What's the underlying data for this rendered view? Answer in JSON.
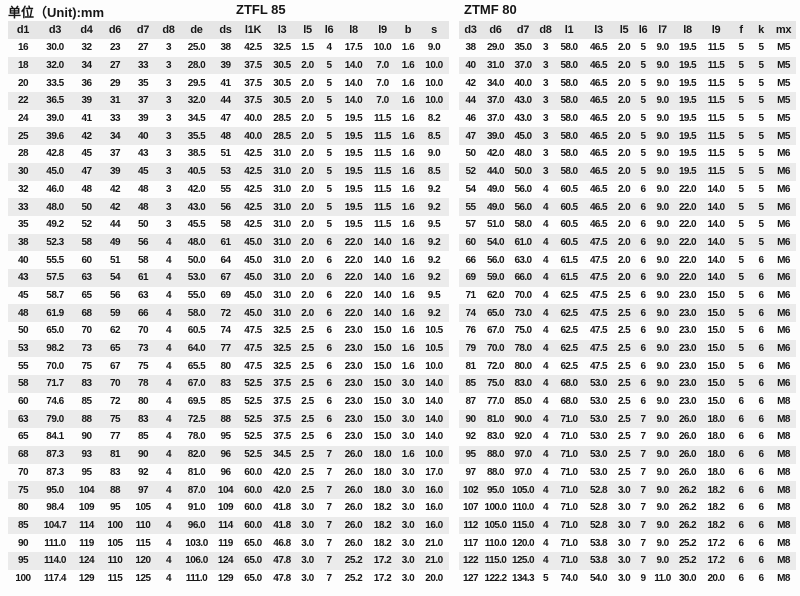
{
  "page": {
    "unit_label": "单位（Unit):mm"
  },
  "left_table": {
    "title": "ZTFL 85",
    "columns": [
      "d1",
      "d3",
      "d4",
      "d6",
      "d7",
      "d8",
      "de",
      "ds",
      "l1K",
      "l3",
      "l5",
      "l6",
      "l8",
      "l9",
      "b",
      "s"
    ],
    "rows": [
      [
        "16",
        "30.0",
        "32",
        "23",
        "27",
        "3",
        "25.0",
        "38",
        "42.5",
        "32.5",
        "1.5",
        "4",
        "17.5",
        "10.0",
        "1.6",
        "9.0"
      ],
      [
        "18",
        "32.0",
        "34",
        "27",
        "33",
        "3",
        "28.0",
        "39",
        "37.5",
        "30.5",
        "2.0",
        "5",
        "14.0",
        "7.0",
        "1.6",
        "10.0"
      ],
      [
        "20",
        "33.5",
        "36",
        "29",
        "35",
        "3",
        "29.5",
        "41",
        "37.5",
        "30.5",
        "2.0",
        "5",
        "14.0",
        "7.0",
        "1.6",
        "10.0"
      ],
      [
        "22",
        "36.5",
        "39",
        "31",
        "37",
        "3",
        "32.0",
        "44",
        "37.5",
        "30.5",
        "2.0",
        "5",
        "14.0",
        "7.0",
        "1.6",
        "10.0"
      ],
      [
        "24",
        "39.0",
        "41",
        "33",
        "39",
        "3",
        "34.5",
        "47",
        "40.0",
        "28.5",
        "2.0",
        "5",
        "19.5",
        "11.5",
        "1.6",
        "8.2"
      ],
      [
        "25",
        "39.6",
        "42",
        "34",
        "40",
        "3",
        "35.5",
        "48",
        "40.0",
        "28.5",
        "2.0",
        "5",
        "19.5",
        "11.5",
        "1.6",
        "8.5"
      ],
      [
        "28",
        "42.8",
        "45",
        "37",
        "43",
        "3",
        "38.5",
        "51",
        "42.5",
        "31.0",
        "2.0",
        "5",
        "19.5",
        "11.5",
        "1.6",
        "9.0"
      ],
      [
        "30",
        "45.0",
        "47",
        "39",
        "45",
        "3",
        "40.5",
        "53",
        "42.5",
        "31.0",
        "2.0",
        "5",
        "19.5",
        "11.5",
        "1.6",
        "8.5"
      ],
      [
        "32",
        "46.0",
        "48",
        "42",
        "48",
        "3",
        "42.0",
        "55",
        "42.5",
        "31.0",
        "2.0",
        "5",
        "19.5",
        "11.5",
        "1.6",
        "9.2"
      ],
      [
        "33",
        "48.0",
        "50",
        "42",
        "48",
        "3",
        "43.0",
        "56",
        "42.5",
        "31.0",
        "2.0",
        "5",
        "19.5",
        "11.5",
        "1.6",
        "9.2"
      ],
      [
        "35",
        "49.2",
        "52",
        "44",
        "50",
        "3",
        "45.5",
        "58",
        "42.5",
        "31.0",
        "2.0",
        "5",
        "19.5",
        "11.5",
        "1.6",
        "9.5"
      ],
      [
        "38",
        "52.3",
        "58",
        "49",
        "56",
        "4",
        "48.0",
        "61",
        "45.0",
        "31.0",
        "2.0",
        "6",
        "22.0",
        "14.0",
        "1.6",
        "9.2"
      ],
      [
        "40",
        "55.5",
        "60",
        "51",
        "58",
        "4",
        "50.0",
        "64",
        "45.0",
        "31.0",
        "2.0",
        "6",
        "22.0",
        "14.0",
        "1.6",
        "9.2"
      ],
      [
        "43",
        "57.5",
        "63",
        "54",
        "61",
        "4",
        "53.0",
        "67",
        "45.0",
        "31.0",
        "2.0",
        "6",
        "22.0",
        "14.0",
        "1.6",
        "9.2"
      ],
      [
        "45",
        "58.7",
        "65",
        "56",
        "63",
        "4",
        "55.0",
        "69",
        "45.0",
        "31.0",
        "2.0",
        "6",
        "22.0",
        "14.0",
        "1.6",
        "9.5"
      ],
      [
        "48",
        "61.9",
        "68",
        "59",
        "66",
        "4",
        "58.0",
        "72",
        "45.0",
        "31.0",
        "2.0",
        "6",
        "22.0",
        "14.0",
        "1.6",
        "9.2"
      ],
      [
        "50",
        "65.0",
        "70",
        "62",
        "70",
        "4",
        "60.5",
        "74",
        "47.5",
        "32.5",
        "2.5",
        "6",
        "23.0",
        "15.0",
        "1.6",
        "10.5"
      ],
      [
        "53",
        "98.2",
        "73",
        "65",
        "73",
        "4",
        "64.0",
        "77",
        "47.5",
        "32.5",
        "2.5",
        "6",
        "23.0",
        "15.0",
        "1.6",
        "10.5"
      ],
      [
        "55",
        "70.0",
        "75",
        "67",
        "75",
        "4",
        "65.5",
        "80",
        "47.5",
        "32.5",
        "2.5",
        "6",
        "23.0",
        "15.0",
        "1.6",
        "10.0"
      ],
      [
        "58",
        "71.7",
        "83",
        "70",
        "78",
        "4",
        "67.0",
        "83",
        "52.5",
        "37.5",
        "2.5",
        "6",
        "23.0",
        "15.0",
        "3.0",
        "14.0"
      ],
      [
        "60",
        "74.6",
        "85",
        "72",
        "80",
        "4",
        "69.5",
        "85",
        "52.5",
        "37.5",
        "2.5",
        "6",
        "23.0",
        "15.0",
        "3.0",
        "14.0"
      ],
      [
        "63",
        "79.0",
        "88",
        "75",
        "83",
        "4",
        "72.5",
        "88",
        "52.5",
        "37.5",
        "2.5",
        "6",
        "23.0",
        "15.0",
        "3.0",
        "14.0"
      ],
      [
        "65",
        "84.1",
        "90",
        "77",
        "85",
        "4",
        "78.0",
        "95",
        "52.5",
        "37.5",
        "2.5",
        "6",
        "23.0",
        "15.0",
        "3.0",
        "14.0"
      ],
      [
        "68",
        "87.3",
        "93",
        "81",
        "90",
        "4",
        "82.0",
        "96",
        "52.5",
        "34.5",
        "2.5",
        "7",
        "26.0",
        "18.0",
        "1.6",
        "10.0"
      ],
      [
        "70",
        "87.3",
        "95",
        "83",
        "92",
        "4",
        "81.0",
        "96",
        "60.0",
        "42.0",
        "2.5",
        "7",
        "26.0",
        "18.0",
        "3.0",
        "17.0"
      ],
      [
        "75",
        "95.0",
        "104",
        "88",
        "97",
        "4",
        "87.0",
        "104",
        "60.0",
        "42.0",
        "2.5",
        "7",
        "26.0",
        "18.0",
        "3.0",
        "16.0"
      ],
      [
        "80",
        "98.4",
        "109",
        "95",
        "105",
        "4",
        "91.0",
        "109",
        "60.0",
        "41.8",
        "3.0",
        "7",
        "26.0",
        "18.2",
        "3.0",
        "16.0"
      ],
      [
        "85",
        "104.7",
        "114",
        "100",
        "110",
        "4",
        "96.0",
        "114",
        "60.0",
        "41.8",
        "3.0",
        "7",
        "26.0",
        "18.2",
        "3.0",
        "16.0"
      ],
      [
        "90",
        "111.0",
        "119",
        "105",
        "115",
        "4",
        "103.0",
        "119",
        "65.0",
        "46.8",
        "3.0",
        "7",
        "26.0",
        "18.2",
        "3.0",
        "21.0"
      ],
      [
        "95",
        "114.0",
        "124",
        "110",
        "120",
        "4",
        "106.0",
        "124",
        "65.0",
        "47.8",
        "3.0",
        "7",
        "25.2",
        "17.2",
        "3.0",
        "21.0"
      ],
      [
        "100",
        "117.4",
        "129",
        "115",
        "125",
        "4",
        "111.0",
        "129",
        "65.0",
        "47.8",
        "3.0",
        "7",
        "25.2",
        "17.2",
        "3.0",
        "20.0"
      ]
    ]
  },
  "right_table": {
    "title": "ZTMF 80",
    "columns": [
      "d3",
      "d6",
      "d7",
      "d8",
      "l1",
      "l3",
      "l5",
      "l6",
      "l7",
      "l8",
      "l9",
      "f",
      "k",
      "mx"
    ],
    "rows": [
      [
        "38",
        "29.0",
        "35.0",
        "3",
        "58.0",
        "46.5",
        "2.0",
        "5",
        "9.0",
        "19.5",
        "11.5",
        "5",
        "5",
        "M5"
      ],
      [
        "40",
        "31.0",
        "37.0",
        "3",
        "58.0",
        "46.5",
        "2.0",
        "5",
        "9.0",
        "19.5",
        "11.5",
        "5",
        "5",
        "M5"
      ],
      [
        "42",
        "34.0",
        "40.0",
        "3",
        "58.0",
        "46.5",
        "2.0",
        "5",
        "9.0",
        "19.5",
        "11.5",
        "5",
        "5",
        "M5"
      ],
      [
        "44",
        "37.0",
        "43.0",
        "3",
        "58.0",
        "46.5",
        "2.0",
        "5",
        "9.0",
        "19.5",
        "11.5",
        "5",
        "5",
        "M5"
      ],
      [
        "46",
        "37.0",
        "43.0",
        "3",
        "58.0",
        "46.5",
        "2.0",
        "5",
        "9.0",
        "19.5",
        "11.5",
        "5",
        "5",
        "M5"
      ],
      [
        "47",
        "39.0",
        "45.0",
        "3",
        "58.0",
        "46.5",
        "2.0",
        "5",
        "9.0",
        "19.5",
        "11.5",
        "5",
        "5",
        "M5"
      ],
      [
        "50",
        "42.0",
        "48.0",
        "3",
        "58.0",
        "46.5",
        "2.0",
        "5",
        "9.0",
        "19.5",
        "11.5",
        "5",
        "5",
        "M6"
      ],
      [
        "52",
        "44.0",
        "50.0",
        "3",
        "58.0",
        "46.5",
        "2.0",
        "5",
        "9.0",
        "19.5",
        "11.5",
        "5",
        "5",
        "M6"
      ],
      [
        "54",
        "49.0",
        "56.0",
        "4",
        "60.5",
        "46.5",
        "2.0",
        "6",
        "9.0",
        "22.0",
        "14.0",
        "5",
        "5",
        "M6"
      ],
      [
        "55",
        "49.0",
        "56.0",
        "4",
        "60.5",
        "46.5",
        "2.0",
        "6",
        "9.0",
        "22.0",
        "14.0",
        "5",
        "5",
        "M6"
      ],
      [
        "57",
        "51.0",
        "58.0",
        "4",
        "60.5",
        "46.5",
        "2.0",
        "6",
        "9.0",
        "22.0",
        "14.0",
        "5",
        "5",
        "M6"
      ],
      [
        "60",
        "54.0",
        "61.0",
        "4",
        "60.5",
        "47.5",
        "2.0",
        "6",
        "9.0",
        "22.0",
        "14.0",
        "5",
        "5",
        "M6"
      ],
      [
        "66",
        "56.0",
        "63.0",
        "4",
        "61.5",
        "47.5",
        "2.0",
        "6",
        "9.0",
        "22.0",
        "14.0",
        "5",
        "6",
        "M6"
      ],
      [
        "69",
        "59.0",
        "66.0",
        "4",
        "61.5",
        "47.5",
        "2.0",
        "6",
        "9.0",
        "22.0",
        "14.0",
        "5",
        "6",
        "M6"
      ],
      [
        "71",
        "62.0",
        "70.0",
        "4",
        "62.5",
        "47.5",
        "2.5",
        "6",
        "9.0",
        "23.0",
        "15.0",
        "5",
        "6",
        "M6"
      ],
      [
        "74",
        "65.0",
        "73.0",
        "4",
        "62.5",
        "47.5",
        "2.5",
        "6",
        "9.0",
        "23.0",
        "15.0",
        "5",
        "6",
        "M6"
      ],
      [
        "76",
        "67.0",
        "75.0",
        "4",
        "62.5",
        "47.5",
        "2.5",
        "6",
        "9.0",
        "23.0",
        "15.0",
        "5",
        "6",
        "M6"
      ],
      [
        "79",
        "70.0",
        "78.0",
        "4",
        "62.5",
        "47.5",
        "2.5",
        "6",
        "9.0",
        "23.0",
        "15.0",
        "5",
        "6",
        "M6"
      ],
      [
        "81",
        "72.0",
        "80.0",
        "4",
        "62.5",
        "47.5",
        "2.5",
        "6",
        "9.0",
        "23.0",
        "15.0",
        "5",
        "6",
        "M6"
      ],
      [
        "85",
        "75.0",
        "83.0",
        "4",
        "68.0",
        "53.0",
        "2.5",
        "6",
        "9.0",
        "23.0",
        "15.0",
        "5",
        "6",
        "M6"
      ],
      [
        "87",
        "77.0",
        "85.0",
        "4",
        "68.0",
        "53.0",
        "2.5",
        "6",
        "9.0",
        "23.0",
        "15.0",
        "6",
        "6",
        "M8"
      ],
      [
        "90",
        "81.0",
        "90.0",
        "4",
        "71.0",
        "53.0",
        "2.5",
        "7",
        "9.0",
        "26.0",
        "18.0",
        "6",
        "6",
        "M8"
      ],
      [
        "92",
        "83.0",
        "92.0",
        "4",
        "71.0",
        "53.0",
        "2.5",
        "7",
        "9.0",
        "26.0",
        "18.0",
        "6",
        "6",
        "M8"
      ],
      [
        "95",
        "88.0",
        "97.0",
        "4",
        "71.0",
        "53.0",
        "2.5",
        "7",
        "9.0",
        "26.0",
        "18.0",
        "6",
        "6",
        "M8"
      ],
      [
        "97",
        "88.0",
        "97.0",
        "4",
        "71.0",
        "53.0",
        "2.5",
        "7",
        "9.0",
        "26.0",
        "18.0",
        "6",
        "6",
        "M8"
      ],
      [
        "102",
        "95.0",
        "105.0",
        "4",
        "71.0",
        "52.8",
        "3.0",
        "7",
        "9.0",
        "26.2",
        "18.2",
        "6",
        "6",
        "M8"
      ],
      [
        "107",
        "100.0",
        "110.0",
        "4",
        "71.0",
        "52.8",
        "3.0",
        "7",
        "9.0",
        "26.2",
        "18.2",
        "6",
        "6",
        "M8"
      ],
      [
        "112",
        "105.0",
        "115.0",
        "4",
        "71.0",
        "52.8",
        "3.0",
        "7",
        "9.0",
        "26.2",
        "18.2",
        "6",
        "6",
        "M8"
      ],
      [
        "117",
        "110.0",
        "120.0",
        "4",
        "71.0",
        "53.8",
        "3.0",
        "7",
        "9.0",
        "25.2",
        "17.2",
        "6",
        "6",
        "M8"
      ],
      [
        "122",
        "115.0",
        "125.0",
        "4",
        "71.0",
        "53.8",
        "3.0",
        "7",
        "9.0",
        "25.2",
        "17.2",
        "6",
        "6",
        "M8"
      ],
      [
        "127",
        "122.2",
        "134.3",
        "5",
        "74.0",
        "54.0",
        "3.0",
        "9",
        "11.0",
        "30.0",
        "20.0",
        "6",
        "6",
        "M8"
      ]
    ]
  },
  "colors": {
    "header_bg": "#e6e6e6",
    "stripe_bg": "#ebebeb",
    "text": "#161616",
    "background": "#fdfdfd"
  }
}
